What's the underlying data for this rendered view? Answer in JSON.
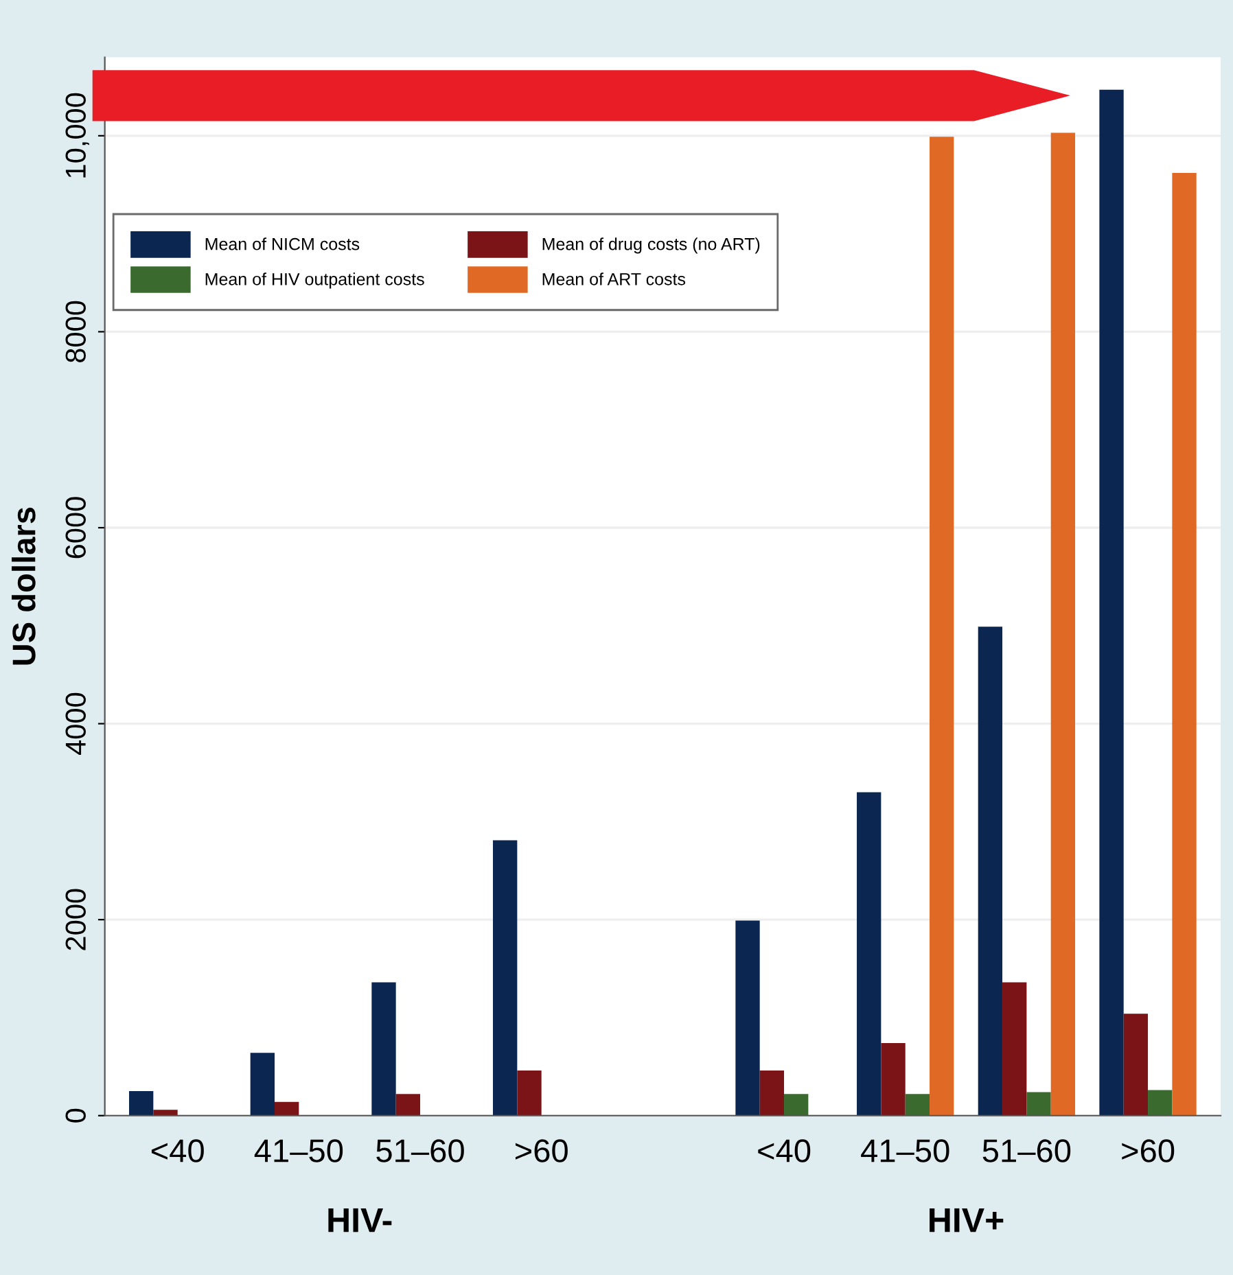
{
  "chart_data": {
    "type": "bar",
    "ylabel": "US dollars",
    "categories": [
      "<40",
      "41–50",
      "51–60",
      ">60",
      null,
      "<40",
      "41–50",
      "51–60",
      ">60"
    ],
    "series": [
      {
        "name": "Mean of NICM costs",
        "color": "#0b2650",
        "values": [
          250,
          640,
          1360,
          2810,
          null,
          1990,
          3300,
          4990,
          10470
        ]
      },
      {
        "name": "Mean of drug costs (no ART)",
        "color": "#7a1416",
        "values": [
          60,
          140,
          220,
          460,
          null,
          460,
          740,
          1360,
          1040
        ]
      },
      {
        "name": "Mean of HIV outpatient costs",
        "color": "#3a6a2e",
        "values": [
          null,
          null,
          null,
          null,
          null,
          220,
          220,
          240,
          260
        ]
      },
      {
        "name": "Mean of ART costs",
        "color": "#e06a25",
        "values": [
          null,
          null,
          null,
          null,
          null,
          null,
          9990,
          10030,
          9620
        ]
      }
    ],
    "annotations": [
      "HIV-",
      "HIV+"
    ],
    "ylim": [
      0,
      10800
    ],
    "yticks": [
      0,
      2000,
      4000,
      6000,
      8000,
      {
        "value": 10000,
        "label": "10,000"
      }
    ],
    "grid": "y",
    "legend": "top left"
  }
}
